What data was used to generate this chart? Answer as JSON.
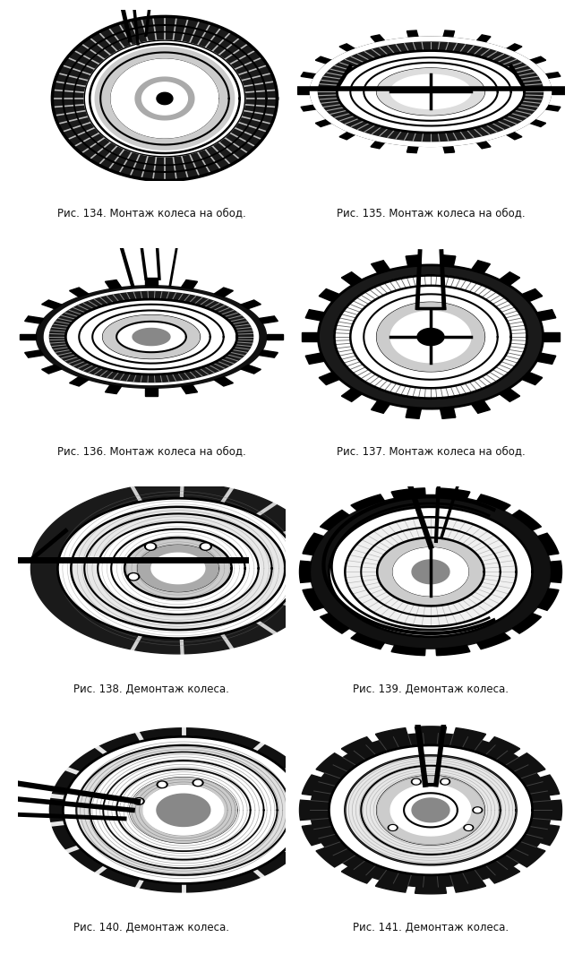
{
  "background_color": "#ffffff",
  "page_width": 6.5,
  "page_height": 10.75,
  "captions": [
    "Рис. 134. Монтаж колеса на обод.",
    "Рис. 135. Монтаж колеса на обод.",
    "Рис. 136. Монтаж колеса на обод.",
    "Рис. 137. Монтаж колеса на обод.",
    "Рис. 138. Демонтаж колеса.",
    "Рис. 139. Демонтаж колеса.",
    "Рис. 140. Демонтаж колеса.",
    "Рис. 141. Демонтаж колеса."
  ],
  "caption_fontsize": 8.5,
  "caption_color": "#111111",
  "grid_rows": 4,
  "grid_cols": 2
}
